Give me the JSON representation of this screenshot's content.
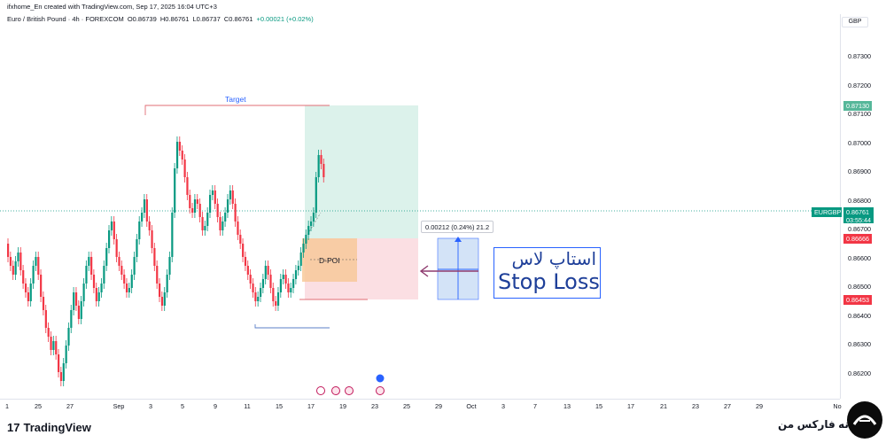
{
  "header": {
    "created_by": "ifxhome_En created with TradingView.com, Sep 17, 2025 16:04 UTC+3",
    "symbol_desc": "Euro / British Pound · 4h · FOREXCOM",
    "open": "O0.86739",
    "high": "H0.86761",
    "low": "L0.86737",
    "close": "C0.86761",
    "change": "+0.00021 (+0.02%)"
  },
  "price_axis": {
    "currency": "GBP",
    "ticks": [
      "0.87300",
      "0.87200",
      "0.87100",
      "0.87000",
      "0.86900",
      "0.86800",
      "0.86700",
      "0.86600",
      "0.86500",
      "0.86400",
      "0.86300",
      "0.86200"
    ],
    "tags": {
      "target": "0.87130",
      "symbol": "EURGBP",
      "last": "0.86761",
      "countdown": "03:55:44",
      "entry": "0.86666",
      "stop": "0.86453"
    }
  },
  "time_axis": {
    "labels": [
      "1",
      "25",
      "27",
      "Sep",
      "3",
      "5",
      "9",
      "11",
      "15",
      "17",
      "19",
      "23",
      "25",
      "29",
      "Oct",
      "3",
      "7",
      "13",
      "15",
      "17",
      "21",
      "23",
      "27",
      "29",
      "No"
    ]
  },
  "annotations": {
    "target": "Target",
    "dpoi": "D-POI",
    "measure": "0.00212 (0.24%) 21.2",
    "stop_loss_fa": "استاپ لاس",
    "stop_loss_en": "Stop Loss"
  },
  "footer": {
    "tradingview": "TradingView",
    "tv_mark": "17",
    "brand_fa": "خانه فارکس من"
  },
  "colors": {
    "up": "#089981",
    "down": "#f23645",
    "accent": "#2962ff",
    "target_zone": "#d6f0e7",
    "stop_zone": "#fbdbe0",
    "poi": "#f7c99a"
  },
  "chart_data": {
    "type": "candlestick",
    "symbol": "EURGBP",
    "timeframe": "4h",
    "ylim": [
      0.8615,
      0.8737
    ],
    "open": 0.86739,
    "high": 0.86761,
    "low": 0.86737,
    "close": 0.86761,
    "levels": {
      "target": 0.8713,
      "entry": 0.86666,
      "stop": 0.86453
    }
  }
}
